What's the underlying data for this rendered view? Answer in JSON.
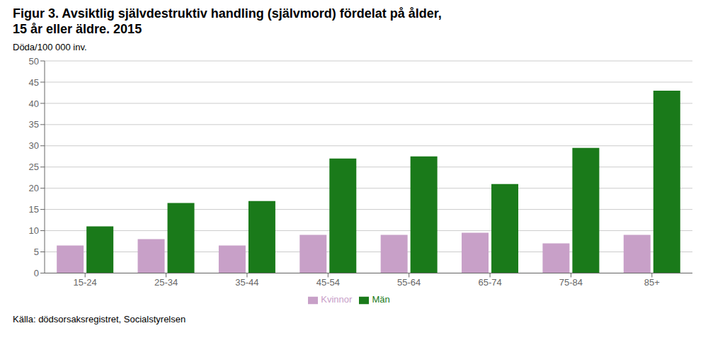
{
  "chart_data": {
    "type": "bar",
    "title": "Figur 3. Avsiktlig självdestruktiv handling (självmord) fördelat på ålder,",
    "subtitle": "15 år eller äldre. 2015",
    "ylabel": "Döda/100 000 inv.",
    "annotations": [
      "Källa: dödsorsaksregistret, Socialstyrelsen"
    ],
    "categories": [
      "15-24",
      "25-34",
      "35-44",
      "45-54",
      "55-64",
      "65-74",
      "75-84",
      "85+"
    ],
    "series": [
      {
        "name": "Kvinnor",
        "color": "#c8a0c8",
        "values": [
          6.5,
          8.0,
          6.5,
          9.0,
          9.0,
          9.5,
          7.0,
          9.0
        ]
      },
      {
        "name": "Män",
        "color": "#1a7a1a",
        "values": [
          11.0,
          16.5,
          17.0,
          27.0,
          27.5,
          21.0,
          29.5,
          43.0
        ]
      }
    ],
    "ylim": [
      0,
      50
    ],
    "yticks": [
      0,
      5,
      10,
      15,
      20,
      25,
      30,
      35,
      40,
      45,
      50
    ],
    "grid": true,
    "legend": "bottom"
  }
}
